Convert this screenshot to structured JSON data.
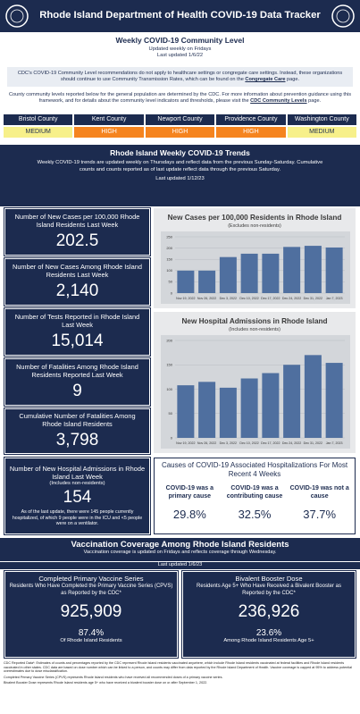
{
  "header": {
    "title": "Rhode Island Department of Health COVID-19 Data Tracker"
  },
  "community": {
    "title": "Weekly COVID-19 Community Level",
    "updated": "Updated weekly on Fridays",
    "last_updated": "Last updated 1/6/22",
    "notice": {
      "before": "CDC's COVID-19 Community Level recommendations do not apply to healthcare settings or congregate care settings. Instead, these organizations should continue to use Community Transmission Rates, which can be found on the ",
      "link": "Congregate Care",
      "after": " page."
    },
    "info": {
      "before": "County community levels reported below for the general population are determined by the CDC. For more information about prevention guidance using this framework, and for details about the community level indicators and thresholds, please visit the ",
      "link": "CDC Community Levels",
      "after": " page."
    },
    "counties": [
      {
        "name": "Bristol County",
        "level": "MEDIUM",
        "color": "#f7f08a"
      },
      {
        "name": "Kent County",
        "level": "HIGH",
        "color": "#f5841f"
      },
      {
        "name": "Newport County",
        "level": "HIGH",
        "color": "#f5841f"
      },
      {
        "name": "Providence County",
        "level": "HIGH",
        "color": "#f5841f"
      },
      {
        "name": "Washington County",
        "level": "MEDIUM",
        "color": "#f7f08a"
      }
    ]
  },
  "trends": {
    "title": "Rhode Island Weekly COVID-19 Trends",
    "description": "Weekly COVID-19 trends are updated weekly on Thursdays and reflect data from the previous Sunday-Saturday. Cumulative counts and counts reported as of last update reflect data through the previous Saturday.",
    "last_updated": "Last updated 1/12/23"
  },
  "cards": [
    {
      "label": "Number of New Cases per 100,000 Rhode Island Residents Last Week",
      "value": "202.5"
    },
    {
      "label": "Number of New Cases Among Rhode Island Residents Last Week",
      "value": "2,140"
    },
    {
      "label": "Number of Tests Reported in Rhode Island Last Week",
      "value": "15,014"
    },
    {
      "label": "Number of Fatalities Among Rhode Island Residents Reported Last Week",
      "value": "9"
    },
    {
      "label": "Cumulative Number of Fatalities Among Rhode Island Residents",
      "value": "3,798"
    }
  ],
  "hospital": {
    "label": "Number of New Hospital Admissions in Rhode Island Last Week",
    "note": "(Includes non-residents)",
    "value": "154",
    "detail": "As of the last update, there were 145 people currently hospitalized, of which 9 people were in the ICU and <5 people were on a ventilator."
  },
  "causes": {
    "title": "Causes of COVID-19 Associated Hospitalizations For Most Recent 4 Weeks",
    "items": [
      {
        "label": "COVID-19 was a primary cause",
        "value": "29.8%"
      },
      {
        "label": "COVID-19 was a contributing cause",
        "value": "32.5%"
      },
      {
        "label": "COVID-19 was not a cause",
        "value": "37.7%"
      }
    ]
  },
  "vaccination": {
    "title": "Vaccination Coverage Among Rhode Island Residents",
    "description": "Vaccination coverage is updated on Fridays and reflects coverage through Wednesday.",
    "last_updated": "Last updated 1/6/23",
    "cards": [
      {
        "title": "Completed Primary Vaccine Series",
        "subtitle": "Residents Who Have Completed the Primary Vaccine Series (CPVS) as Reported by the CDC*",
        "value": "925,909",
        "percent": "87.4%",
        "percent_label": "Of Rhode Island Residents"
      },
      {
        "title": "Bivalent Booster Dose",
        "subtitle": "Residents Age 5+ Who Have Received a Bivalent Booster as Reported by the CDC*",
        "value": "236,926",
        "percent": "23.6%",
        "percent_label": "Among Rhode Island Residents Age 5+"
      }
    ]
  },
  "footnotes": [
    "CDC Reported Data*: Estimates of counts and percentages reported by the CDC represent Rhode Island residents vaccinated anywhere, which include Rhode Island residents vaccinated at federal facilities and Rhode Island residents vaccinated in other states. CDC data are based on dose number which can be linked to a person, and counts may differ from data reported by the Rhode Island Department of Health. Vaccine coverage is capped at 95% to address potential overestimates due to dose misclassification.",
    "Completed Primary Vaccine Series (CPVS) represents Rhode Island residents who have received all recommended doses of a primary vaccine series.",
    "Bivalent Booster Dose represents Rhode Island residents age 5+ who have received a bivalent booster dose on or after September 1, 2022."
  ],
  "chart_data": [
    {
      "type": "bar",
      "title": "New Cases per 100,000 Residents in Rhode Island",
      "subtitle": "(Excludes non-residents)",
      "categories": [
        "Nov 19, 2022",
        "Nov 26, 2022",
        "Dec 3, 2022",
        "Dec 10, 2022",
        "Dec 17, 2022",
        "Dec 24, 2022",
        "Dec 31, 2022",
        "Jan 7, 2023"
      ],
      "values": [
        100,
        100,
        160,
        175,
        175,
        205,
        210,
        202.5
      ],
      "color": "#4f6f9f",
      "ylim": [
        0,
        250
      ],
      "yticks": [
        0,
        50,
        100,
        150,
        200,
        250
      ],
      "grid": true
    },
    {
      "type": "bar",
      "title": "New Hospital Admissions in Rhode Island",
      "subtitle": "(Includes non-residents)",
      "categories": [
        "Nov 19, 2022",
        "Nov 26, 2022",
        "Dec 3, 2022",
        "Dec 10, 2022",
        "Dec 17, 2022",
        "Dec 24, 2022",
        "Dec 31, 2022",
        "Jan 7, 2023"
      ],
      "values": [
        108,
        115,
        103,
        122,
        133,
        150,
        170,
        154
      ],
      "color": "#4f6f9f",
      "ylim": [
        0,
        200
      ],
      "yticks": [
        0,
        50,
        100,
        150,
        200
      ],
      "grid": true
    }
  ]
}
